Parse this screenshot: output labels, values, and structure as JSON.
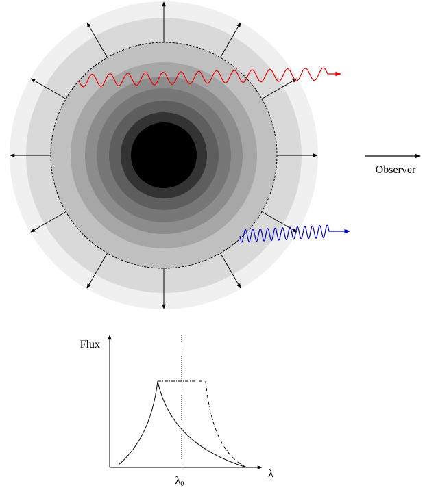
{
  "observer_label": "Observer",
  "plot": {
    "y_label": "Flux",
    "x_label": "λ",
    "marker": {
      "symbol": "λ",
      "subscript": "0"
    }
  }
}
